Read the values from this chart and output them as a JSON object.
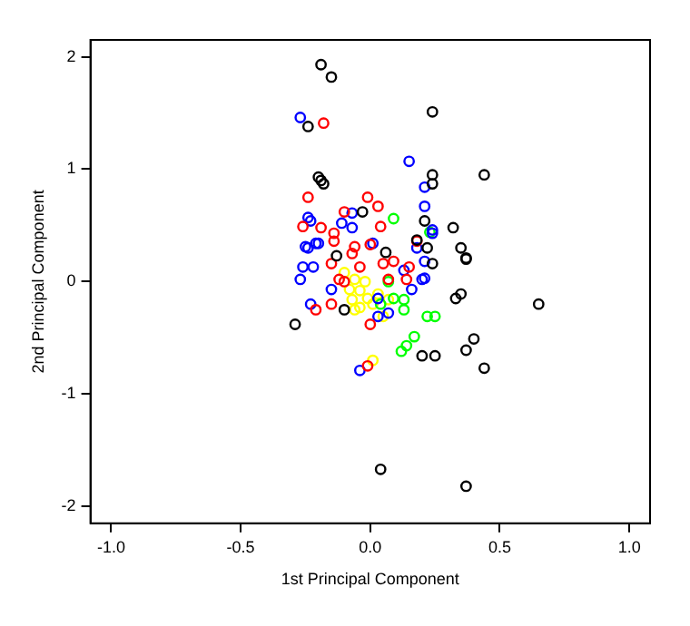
{
  "chart_data": {
    "type": "scatter",
    "xlabel": "1st Principal Component",
    "ylabel": "2nd Principal Component",
    "xlim": [
      -1.08,
      1.08
    ],
    "ylim": [
      -2.15,
      2.15
    ],
    "xticks": [
      {
        "value": -1,
        "label": "-1.0"
      },
      {
        "value": -0.5,
        "label": "-0.5"
      },
      {
        "value": 0,
        "label": "0.0"
      },
      {
        "value": 0.5,
        "label": "0.5"
      },
      {
        "value": 1,
        "label": "1.0"
      }
    ],
    "yticks": [
      -2,
      -1,
      0,
      1,
      2
    ],
    "grid": false,
    "legend": false,
    "marker": "circle",
    "series": [
      {
        "color": "#000000",
        "x": [
          -0.19,
          -0.15,
          0.24,
          -0.24,
          -0.2,
          -0.19,
          -0.18,
          0.44,
          0.24,
          0.24,
          0.21,
          -0.03,
          0.32,
          0.35,
          0.37,
          0.37,
          0.22,
          0.24,
          0.33,
          0.35,
          0.65,
          0.4,
          0.37,
          0.44,
          0.37,
          0.04,
          0.2,
          -0.29,
          -0.1,
          -0.13,
          0.06,
          0.18,
          0.25
        ],
        "values": [
          1.93,
          1.82,
          1.51,
          1.38,
          0.93,
          0.9,
          0.87,
          0.95,
          0.95,
          0.87,
          0.54,
          0.62,
          0.48,
          0.3,
          0.21,
          0.2,
          0.3,
          0.16,
          -0.15,
          -0.11,
          -0.2,
          -0.51,
          -0.61,
          -0.77,
          -1.82,
          -1.67,
          -0.66,
          -0.38,
          -0.25,
          0.23,
          0.26,
          0.37,
          -0.66
        ]
      },
      {
        "color": "#ff0000",
        "x": [
          -0.18,
          -0.24,
          -0.01,
          0.03,
          -0.1,
          -0.26,
          -0.19,
          0.04,
          -0.14,
          0.18,
          -0.14,
          -0.06,
          0,
          -0.15,
          -0.07,
          -0.04,
          0.05,
          0.09,
          0.07,
          -0.12,
          -0.1,
          -0.21,
          -0.15,
          0,
          0.14,
          0.15,
          -0.01
        ],
        "values": [
          1.41,
          0.75,
          0.75,
          0.67,
          0.62,
          0.49,
          0.48,
          0.49,
          0.43,
          0.36,
          0.36,
          0.31,
          0.33,
          0.16,
          0.25,
          0.13,
          0.16,
          0.18,
          0.02,
          0.02,
          0,
          -0.25,
          -0.2,
          -0.38,
          0.02,
          0.13,
          -0.75
        ]
      },
      {
        "color": "#0000ff",
        "x": [
          -0.27,
          0.15,
          0.21,
          0.21,
          -0.24,
          -0.23,
          -0.07,
          -0.11,
          -0.07,
          -0.2,
          -0.25,
          0.01,
          -0.24,
          -0.21,
          -0.26,
          -0.27,
          -0.22,
          -0.15,
          -0.23,
          0.18,
          0.24,
          0.2,
          0.13,
          0.03,
          0.07,
          0.03,
          0.16,
          -0.04,
          0.21,
          0.21,
          0.24
        ],
        "values": [
          1.46,
          1.07,
          0.84,
          0.67,
          0.57,
          0.54,
          0.61,
          0.52,
          0.48,
          0.34,
          0.31,
          0.34,
          0.3,
          0.34,
          0.13,
          0.02,
          0.13,
          -0.07,
          -0.2,
          0.3,
          0.43,
          0.02,
          0.1,
          -0.15,
          -0.28,
          -0.31,
          -0.07,
          -0.79,
          0.18,
          0.03,
          0.46
        ]
      },
      {
        "color": "#00ff00",
        "x": [
          0.09,
          0.23,
          0.07,
          0.09,
          0.13,
          0.13,
          0.22,
          0.25,
          0.17,
          0.14,
          0.12,
          0.04
        ],
        "values": [
          0.56,
          0.44,
          0,
          -0.15,
          -0.16,
          -0.25,
          -0.31,
          -0.31,
          -0.49,
          -0.57,
          -0.62,
          -0.2
        ]
      },
      {
        "color": "#ffff00",
        "x": [
          -0.1,
          -0.06,
          -0.08,
          -0.04,
          -0.02,
          -0.01,
          -0.07,
          -0.04,
          0.01,
          0.03,
          0.07,
          0.05,
          0.01,
          -0.06
        ],
        "values": [
          0.08,
          0.02,
          -0.07,
          -0.08,
          0,
          -0.15,
          -0.16,
          -0.23,
          -0.2,
          -0.11,
          -0.16,
          -0.31,
          -0.7,
          -0.25
        ]
      }
    ]
  }
}
